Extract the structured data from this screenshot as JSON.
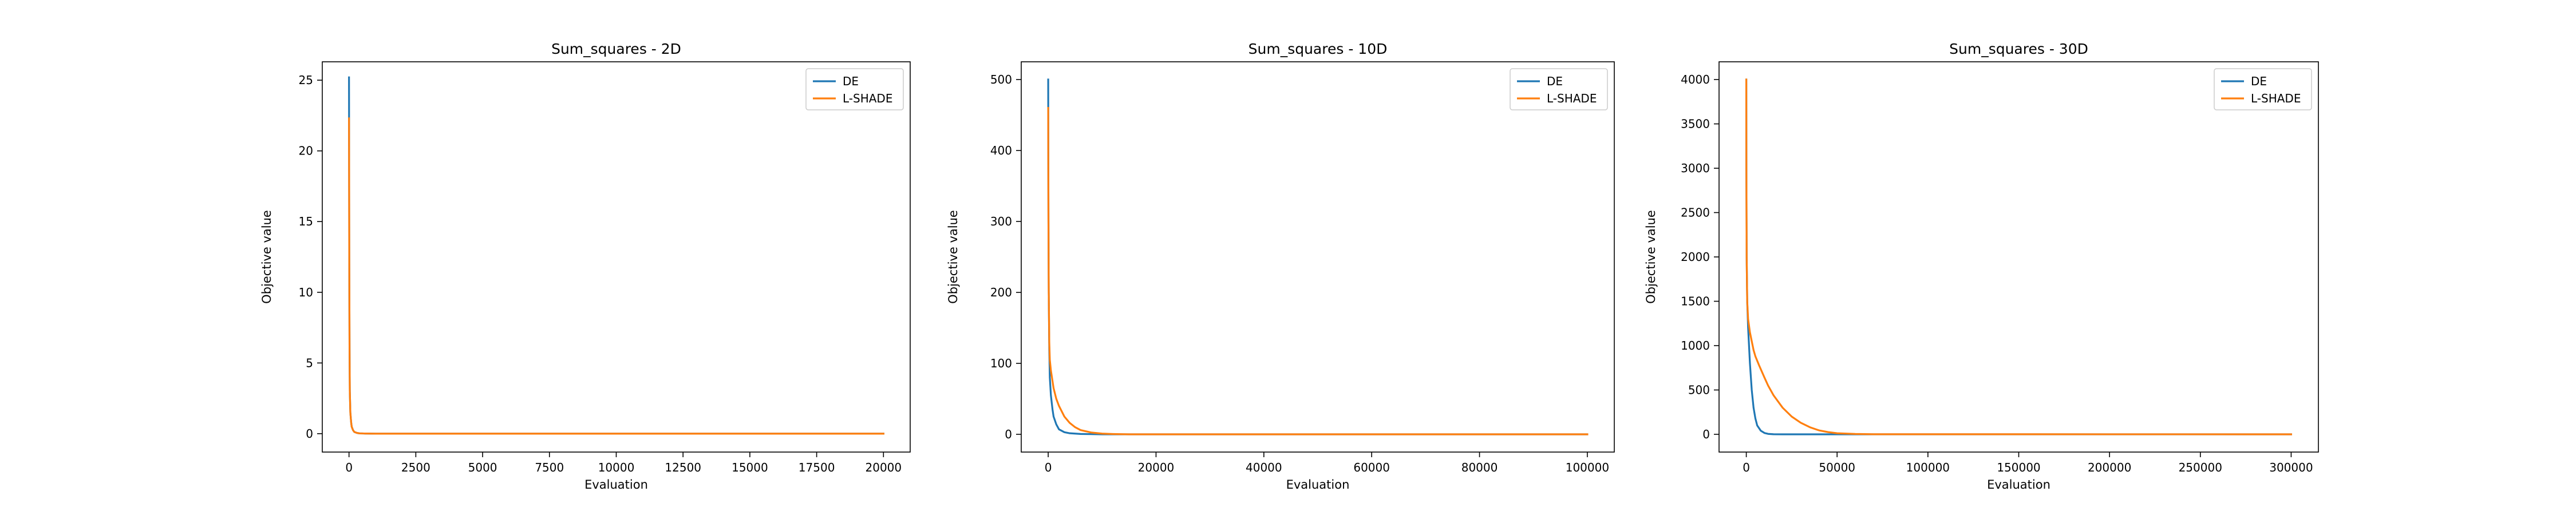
{
  "chart_data": [
    {
      "type": "line",
      "title": "Sum_squares - 2D",
      "xlabel": "Evaluation",
      "ylabel": "Objective value",
      "xlim": [
        -1000,
        21000
      ],
      "ylim": [
        -1.3,
        26.3
      ],
      "xticks": [
        0,
        2500,
        5000,
        7500,
        10000,
        12500,
        15000,
        17500,
        20000
      ],
      "yticks": [
        0,
        5,
        10,
        15,
        20,
        25
      ],
      "grid": false,
      "legend": "top-right",
      "series": [
        {
          "name": "DE",
          "color": "#1f77b4",
          "x": [
            0,
            1,
            10,
            20,
            30,
            50,
            80,
            100,
            150,
            200,
            300,
            400,
            600,
            1000,
            20000
          ],
          "y": [
            25.2,
            24,
            12,
            6,
            3,
            1.5,
            0.8,
            0.5,
            0.25,
            0.12,
            0.05,
            0.02,
            0.01,
            0,
            0
          ]
        },
        {
          "name": "L-SHADE",
          "color": "#ff7f0e",
          "x": [
            0,
            1,
            10,
            20,
            30,
            50,
            80,
            100,
            150,
            200,
            300,
            400,
            600,
            1000,
            20000
          ],
          "y": [
            22.3,
            21,
            12,
            6,
            3,
            1.5,
            0.8,
            0.5,
            0.25,
            0.12,
            0.05,
            0.02,
            0.01,
            0,
            0
          ]
        }
      ]
    },
    {
      "type": "line",
      "title": "Sum_squares - 10D",
      "xlabel": "Evaluation",
      "ylabel": "Objective value",
      "xlim": [
        -5000,
        105000
      ],
      "ylim": [
        -25,
        525
      ],
      "xticks": [
        0,
        20000,
        40000,
        60000,
        80000,
        100000
      ],
      "yticks": [
        0,
        100,
        200,
        300,
        400,
        500
      ],
      "grid": false,
      "legend": "top-right",
      "series": [
        {
          "name": "DE",
          "color": "#1f77b4",
          "x": [
            0,
            10,
            50,
            100,
            200,
            300,
            500,
            800,
            1000,
            1500,
            2000,
            3000,
            4000,
            6000,
            10000,
            100000
          ],
          "y": [
            500,
            450,
            300,
            200,
            120,
            80,
            55,
            35,
            25,
            14,
            7,
            3,
            1.5,
            0.5,
            0,
            0
          ]
        },
        {
          "name": "L-SHADE",
          "color": "#ff7f0e",
          "x": [
            0,
            10,
            50,
            100,
            200,
            300,
            500,
            800,
            1000,
            1500,
            2000,
            3000,
            4000,
            5000,
            6000,
            8000,
            10000,
            12000,
            15000,
            100000
          ],
          "y": [
            460,
            400,
            300,
            200,
            130,
            105,
            90,
            75,
            65,
            50,
            40,
            25,
            16,
            10,
            6,
            2.5,
            1,
            0.4,
            0,
            0
          ]
        }
      ]
    },
    {
      "type": "line",
      "title": "Sum_squares - 30D",
      "xlabel": "Evaluation",
      "ylabel": "Objective value",
      "xlim": [
        -15000,
        315000
      ],
      "ylim": [
        -200,
        4200
      ],
      "xticks": [
        0,
        50000,
        100000,
        150000,
        200000,
        250000,
        300000
      ],
      "yticks": [
        0,
        500,
        1000,
        1500,
        2000,
        2500,
        3000,
        3500,
        4000
      ],
      "grid": false,
      "legend": "top-right",
      "series": [
        {
          "name": "DE",
          "color": "#1f77b4",
          "x": [
            0,
            50,
            200,
            500,
            1000,
            2000,
            3000,
            4000,
            5000,
            6000,
            8000,
            10000,
            12000,
            15000,
            20000,
            300000
          ],
          "y": [
            4000,
            3000,
            2000,
            1500,
            1200,
            800,
            500,
            300,
            180,
            100,
            40,
            15,
            5,
            1,
            0,
            0
          ]
        },
        {
          "name": "L-SHADE",
          "color": "#ff7f0e",
          "x": [
            0,
            50,
            200,
            500,
            1000,
            2000,
            3000,
            4000,
            5000,
            7000,
            10000,
            12000,
            15000,
            20000,
            25000,
            30000,
            35000,
            40000,
            45000,
            50000,
            60000,
            70000,
            300000
          ],
          "y": [
            4000,
            3000,
            2000,
            1500,
            1300,
            1150,
            1050,
            950,
            880,
            780,
            640,
            550,
            440,
            300,
            200,
            130,
            80,
            45,
            25,
            12,
            4,
            1,
            0
          ]
        }
      ]
    }
  ]
}
